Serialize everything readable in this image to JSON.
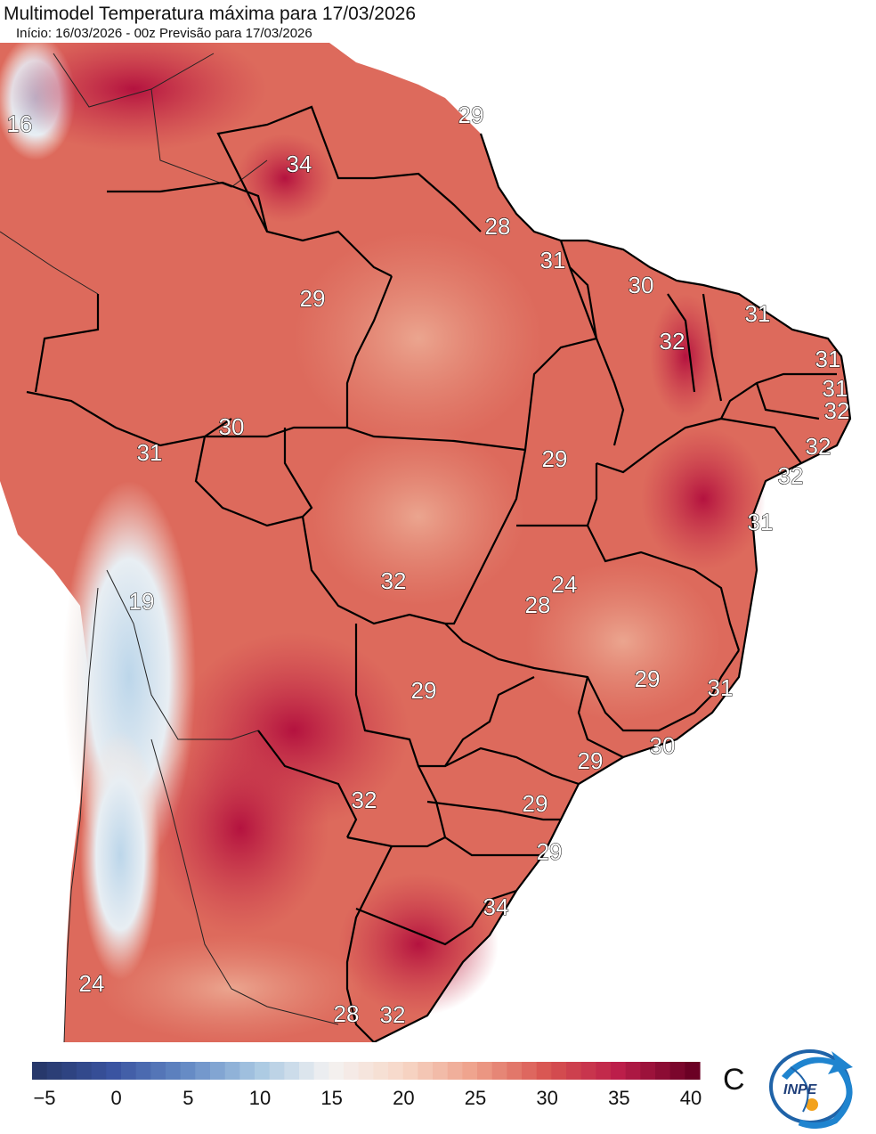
{
  "header": {
    "title": "Multimodel Temperatura máxima para 17/03/2026",
    "subtitle": "Início: 16/03/2026 - 00z  Previsão para 17/03/2026"
  },
  "map": {
    "labels": [
      {
        "text": "16"
      },
      {
        "text": "34"
      },
      {
        "text": "29"
      },
      {
        "text": "28"
      },
      {
        "text": "31"
      },
      {
        "text": "29"
      },
      {
        "text": "30"
      },
      {
        "text": "31"
      },
      {
        "text": "32"
      },
      {
        "text": "31"
      },
      {
        "text": "31"
      },
      {
        "text": "32"
      },
      {
        "text": "30"
      },
      {
        "text": "31"
      },
      {
        "text": "32"
      },
      {
        "text": "32"
      },
      {
        "text": "29"
      },
      {
        "text": "31"
      },
      {
        "text": "32"
      },
      {
        "text": "24"
      },
      {
        "text": "28"
      },
      {
        "text": "19"
      },
      {
        "text": "29"
      },
      {
        "text": "29"
      },
      {
        "text": "31"
      },
      {
        "text": "30"
      },
      {
        "text": "29"
      },
      {
        "text": "32"
      },
      {
        "text": "29"
      },
      {
        "text": "29"
      },
      {
        "text": "34"
      },
      {
        "text": "24"
      },
      {
        "text": "28"
      },
      {
        "text": "32"
      }
    ]
  },
  "colorbar": {
    "ticks": [
      "−5",
      "0",
      "5",
      "10",
      "15",
      "20",
      "25",
      "30",
      "35",
      "40"
    ],
    "unit": "C",
    "range": [
      -5,
      40
    ],
    "colors": [
      "#27386b",
      "#3953a0",
      "#6388c4",
      "#a8c8e2",
      "#f4f2f2",
      "#f7d8c8",
      "#eea08a",
      "#d85450",
      "#bb1d4a",
      "#6b0024"
    ]
  },
  "logo": {
    "text": "INPE"
  }
}
